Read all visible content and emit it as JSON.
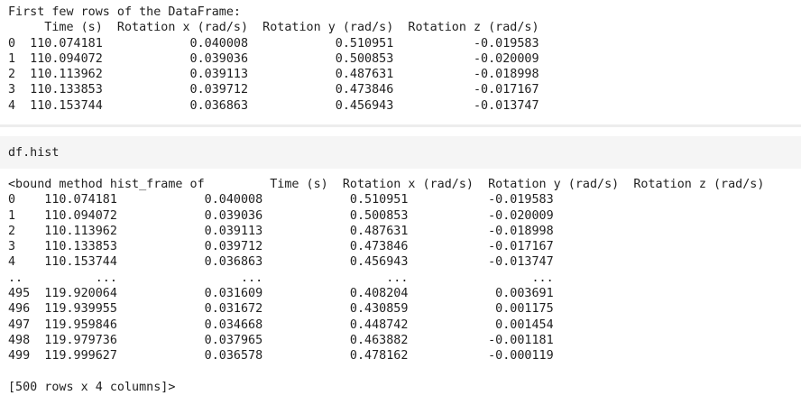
{
  "output1": {
    "text": "First few rows of the DataFrame:\n     Time (s)  Rotation x (rad/s)  Rotation y (rad/s)  Rotation z (rad/s)\n0  110.074181            0.040008            0.510951           -0.019583\n1  110.094072            0.039036            0.500853           -0.020009\n2  110.113962            0.039113            0.487631           -0.018998\n3  110.133853            0.039712            0.473846           -0.017167\n4  110.153744            0.036863            0.456943           -0.013747"
  },
  "cell": {
    "code": "df.hist"
  },
  "output2": {
    "text": "<bound method hist_frame of         Time (s)  Rotation x (rad/s)  Rotation y (rad/s)  Rotation z (rad/s)\n0    110.074181            0.040008            0.510951           -0.019583\n1    110.094072            0.039036            0.500853           -0.020009\n2    110.113962            0.039113            0.487631           -0.018998\n3    110.133853            0.039712            0.473846           -0.017167\n4    110.153744            0.036863            0.456943           -0.013747\n..          ...                 ...                 ...                 ...\n495  119.920064            0.031609            0.408204            0.003691\n496  119.939955            0.031672            0.430859            0.001175\n497  119.959846            0.034668            0.448742            0.001454\n498  119.979736            0.037965            0.463882           -0.001181\n499  119.999627            0.036578            0.478162           -0.000119\n\n[500 rows x 4 columns]>"
  }
}
